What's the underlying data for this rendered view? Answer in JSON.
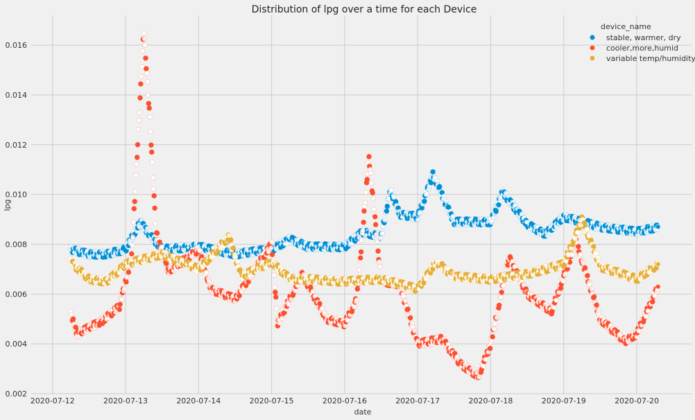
{
  "chart_data": {
    "type": "scatter",
    "title": "Distribution of lpg over a time for each Device",
    "xlabel": "date",
    "ylabel": "lpg",
    "x_tick_labels": [
      "2020-07-12",
      "2020-07-13",
      "2020-07-14",
      "2020-07-15",
      "2020-07-16",
      "2020-07-17",
      "2020-07-18",
      "2020-07-19",
      "2020-07-20"
    ],
    "y_tick_labels": [
      "0.002",
      "0.004",
      "0.006",
      "0.008",
      "0.010",
      "0.012",
      "0.014",
      "0.016"
    ],
    "xlim": [
      "2020-07-11 17:00",
      "2020-07-20 18:00"
    ],
    "ylim": [
      0.002,
      0.0172
    ],
    "grid": true,
    "legend_title": "device_name",
    "legend_position": "top-right",
    "series": [
      {
        "name": "stable, warmer, dry",
        "color": "#008fd5",
        "points": [
          [
            "2020-07-12 06:00",
            0.0078
          ],
          [
            "2020-07-12 12:00",
            0.0076
          ],
          [
            "2020-07-12 18:00",
            0.0076
          ],
          [
            "2020-07-13 00:00",
            0.0078
          ],
          [
            "2020-07-13 05:00",
            0.0089
          ],
          [
            "2020-07-13 06:00",
            0.0087
          ],
          [
            "2020-07-13 12:00",
            0.0078
          ],
          [
            "2020-07-14 00:00",
            0.0079
          ],
          [
            "2020-07-14 12:00",
            0.0076
          ],
          [
            "2020-07-15 00:00",
            0.0078
          ],
          [
            "2020-07-15 06:00",
            0.0082
          ],
          [
            "2020-07-15 12:00",
            0.0079
          ],
          [
            "2020-07-16 00:00",
            0.0079
          ],
          [
            "2020-07-16 06:00",
            0.0085
          ],
          [
            "2020-07-16 12:00",
            0.0083
          ],
          [
            "2020-07-16 15:00",
            0.0102
          ],
          [
            "2020-07-16 18:00",
            0.0092
          ],
          [
            "2020-07-17 00:00",
            0.0091
          ],
          [
            "2020-07-17 05:00",
            0.0108
          ],
          [
            "2020-07-17 12:00",
            0.0089
          ],
          [
            "2020-07-18 00:00",
            0.0089
          ],
          [
            "2020-07-18 04:00",
            0.0101
          ],
          [
            "2020-07-18 12:00",
            0.0088
          ],
          [
            "2020-07-18 18:00",
            0.0084
          ],
          [
            "2020-07-19 00:00",
            0.0091
          ],
          [
            "2020-07-19 12:00",
            0.0087
          ],
          [
            "2020-07-20 00:00",
            0.0085
          ],
          [
            "2020-07-20 07:00",
            0.0087
          ]
        ]
      },
      {
        "name": "cooler,more,humid",
        "color": "#fc4f30",
        "points": [
          [
            "2020-07-12 06:00",
            0.0052
          ],
          [
            "2020-07-12 08:00",
            0.0044
          ],
          [
            "2020-07-12 16:00",
            0.0049
          ],
          [
            "2020-07-12 22:00",
            0.0055
          ],
          [
            "2020-07-13 02:00",
            0.0075
          ],
          [
            "2020-07-13 06:00",
            0.0166
          ],
          [
            "2020-07-13 08:00",
            0.013
          ],
          [
            "2020-07-13 10:00",
            0.0085
          ],
          [
            "2020-07-13 14:00",
            0.0069
          ],
          [
            "2020-07-14 00:00",
            0.0078
          ],
          [
            "2020-07-14 04:00",
            0.0062
          ],
          [
            "2020-07-14 12:00",
            0.0058
          ],
          [
            "2020-07-15 00:00",
            0.008
          ],
          [
            "2020-07-15 02:00",
            0.0048
          ],
          [
            "2020-07-15 10:00",
            0.0068
          ],
          [
            "2020-07-15 18:00",
            0.005
          ],
          [
            "2020-07-16 00:00",
            0.0048
          ],
          [
            "2020-07-16 04:00",
            0.0058
          ],
          [
            "2020-07-16 08:00",
            0.0115
          ],
          [
            "2020-07-16 12:00",
            0.0065
          ],
          [
            "2020-07-16 18:00",
            0.0064
          ],
          [
            "2020-07-17 00:00",
            0.004
          ],
          [
            "2020-07-17 08:00",
            0.0042
          ],
          [
            "2020-07-17 14:00",
            0.0032
          ],
          [
            "2020-07-17 20:00",
            0.0027
          ],
          [
            "2020-07-18 00:00",
            0.004
          ],
          [
            "2020-07-18 06:00",
            0.0075
          ],
          [
            "2020-07-18 12:00",
            0.006
          ],
          [
            "2020-07-18 20:00",
            0.0053
          ],
          [
            "2020-07-19 04:00",
            0.0081
          ],
          [
            "2020-07-19 12:00",
            0.005
          ],
          [
            "2020-07-19 20:00",
            0.0041
          ],
          [
            "2020-07-20 00:00",
            0.0044
          ],
          [
            "2020-07-20 07:00",
            0.0063
          ]
        ]
      },
      {
        "name": "variable temp/humidity",
        "color": "#e5ae38",
        "points": [
          [
            "2020-07-12 06:00",
            0.0073
          ],
          [
            "2020-07-12 12:00",
            0.0066
          ],
          [
            "2020-07-12 18:00",
            0.0065
          ],
          [
            "2020-07-13 00:00",
            0.0072
          ],
          [
            "2020-07-13 12:00",
            0.0076
          ],
          [
            "2020-07-14 00:00",
            0.007
          ],
          [
            "2020-07-14 10:00",
            0.0083
          ],
          [
            "2020-07-14 14:00",
            0.0067
          ],
          [
            "2020-07-15 00:00",
            0.0073
          ],
          [
            "2020-07-15 06:00",
            0.0066
          ],
          [
            "2020-07-15 12:00",
            0.0066
          ],
          [
            "2020-07-16 00:00",
            0.0065
          ],
          [
            "2020-07-16 12:00",
            0.0066
          ],
          [
            "2020-07-17 00:00",
            0.0062
          ],
          [
            "2020-07-17 06:00",
            0.0073
          ],
          [
            "2020-07-17 12:00",
            0.0067
          ],
          [
            "2020-07-18 00:00",
            0.0066
          ],
          [
            "2020-07-18 12:00",
            0.0068
          ],
          [
            "2020-07-19 00:00",
            0.0072
          ],
          [
            "2020-07-19 06:00",
            0.009
          ],
          [
            "2020-07-19 12:00",
            0.0071
          ],
          [
            "2020-07-20 00:00",
            0.0066
          ],
          [
            "2020-07-20 07:00",
            0.0072
          ]
        ]
      }
    ]
  }
}
